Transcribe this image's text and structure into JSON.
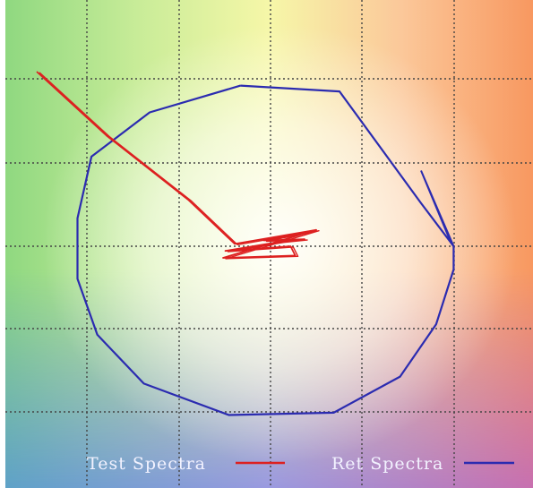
{
  "chart_data": {
    "type": "line",
    "grid": true,
    "legend_placement": "bottom",
    "xlim": [
      -200,
      200
    ],
    "ylim": [
      -170,
      170
    ],
    "series": [
      {
        "name": "Test Spectra",
        "color": "#dd2020",
        "points": [
          [
            40,
            14
          ],
          [
            -5,
            5
          ],
          [
            30,
            6
          ],
          [
            10,
            4
          ],
          [
            -38,
            -4
          ],
          [
            18,
            0
          ],
          [
            22,
            -8
          ],
          [
            -40,
            -10
          ],
          [
            40,
            14
          ],
          [
            -30,
            2
          ],
          [
            -70,
            40
          ],
          [
            -140,
            95
          ],
          [
            -200,
            150
          ]
        ]
      },
      {
        "name": "Ret Spectra",
        "color": "#2b2bb0",
        "points": [
          [
            -25,
            138
          ],
          [
            60,
            133
          ],
          [
            130,
            37
          ],
          [
            158,
            0
          ],
          [
            158,
            -20
          ],
          [
            143,
            -67
          ],
          [
            112,
            -112
          ],
          [
            55,
            -143
          ],
          [
            -35,
            -145
          ],
          [
            -108,
            -118
          ],
          [
            -148,
            -76
          ],
          [
            -165,
            -28
          ],
          [
            -165,
            24
          ],
          [
            -153,
            77
          ],
          [
            -103,
            115
          ],
          [
            -25,
            138
          ]
        ],
        "spur": [
          [
            130,
            65
          ],
          [
            158,
            0
          ]
        ]
      }
    ],
    "legend": {
      "test_label": "Test Spectra",
      "ret_label": "Ret Spectra"
    }
  }
}
